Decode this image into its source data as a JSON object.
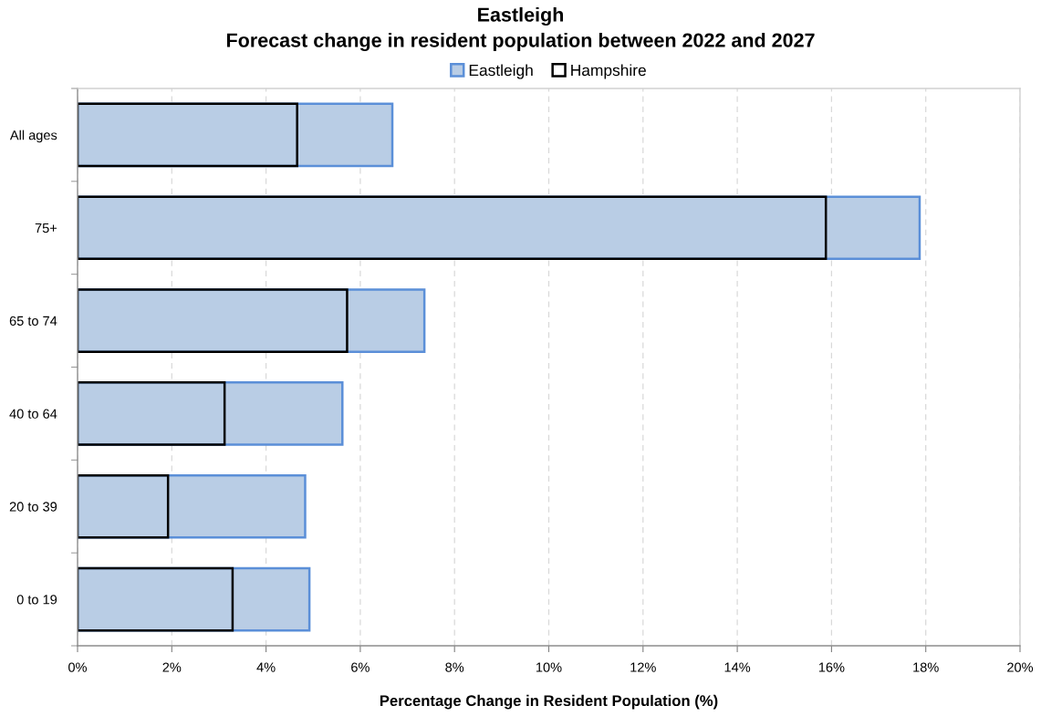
{
  "chart_data": {
    "type": "bar",
    "orientation": "horizontal",
    "title": "Eastleigh",
    "subtitle": "Forecast change in resident population between 2022 and 2027",
    "xlabel": "Percentage Change in Resident Population (%)",
    "categories": [
      "All ages",
      "75+",
      "65 to 74",
      "40 to 64",
      "20 to 39",
      "0 to 19"
    ],
    "series": [
      {
        "name": "Eastleigh",
        "color": "#b9cde5",
        "values": [
          6.68,
          17.87,
          7.36,
          5.62,
          4.83,
          4.92
        ]
      },
      {
        "name": "Hampshire",
        "color": "#000000",
        "values": [
          4.66,
          15.88,
          5.72,
          3.12,
          1.92,
          3.29
        ]
      }
    ],
    "xlim": [
      0,
      20
    ],
    "xticks": [
      {
        "value": 0,
        "label": "0%"
      },
      {
        "value": 2,
        "label": "2%"
      },
      {
        "value": 4,
        "label": "4%"
      },
      {
        "value": 6,
        "label": "6%"
      },
      {
        "value": 8,
        "label": "8%"
      },
      {
        "value": 10,
        "label": "10%"
      },
      {
        "value": 12,
        "label": "12%"
      },
      {
        "value": 14,
        "label": "14%"
      },
      {
        "value": 16,
        "label": "16%"
      },
      {
        "value": 18,
        "label": "18%"
      },
      {
        "value": 20,
        "label": "20%"
      }
    ],
    "grid": "x",
    "legend": "top"
  }
}
